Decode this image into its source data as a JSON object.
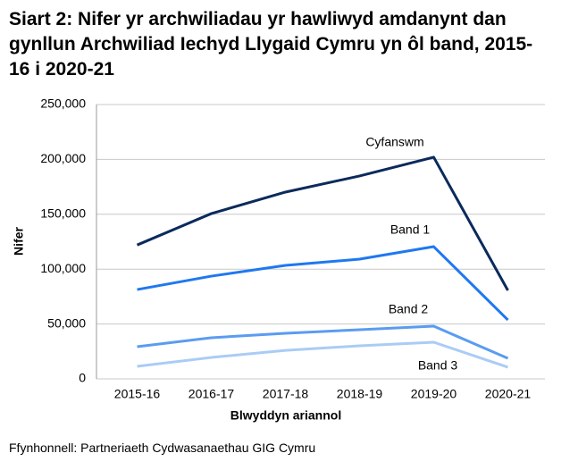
{
  "chart_data": {
    "type": "line",
    "title": "Siart 2: Nifer yr archwiliadau yr hawliwyd amdanynt dan gynllun Archwiliad Iechyd Llygaid Cymru yn ôl band, 2015-16 i 2020-21",
    "x_label": "Blwyddyn ariannol",
    "y_label": "Nifer",
    "source": "Ffynhonnell: Partneriaeth Cydwasanaethau GIG Cymru",
    "categories": [
      "2015-16",
      "2016-17",
      "2017-18",
      "2018-19",
      "2019-20",
      "2020-21"
    ],
    "series": [
      {
        "name": "Cyfanswm",
        "color": "#0b2a5c",
        "values": [
          122000,
          150600,
          170200,
          184900,
          202000,
          80600
        ]
      },
      {
        "name": "Band 1",
        "color": "#1f78f0",
        "values": [
          81400,
          93600,
          103400,
          109100,
          120500,
          53700
        ]
      },
      {
        "name": "Band 2",
        "color": "#5a9cf0",
        "values": [
          29300,
          37500,
          41500,
          44800,
          48000,
          18700
        ]
      },
      {
        "name": "Band 3",
        "color": "#aaccf5",
        "values": [
          11400,
          19500,
          26000,
          30100,
          33400,
          10600
        ]
      }
    ],
    "ylim": [
      0,
      250000
    ],
    "yticks": [
      0,
      {
        "value": 50000,
        "label": "50,000"
      },
      {
        "value": 100000,
        "label": "100,000"
      },
      {
        "value": 150000,
        "label": "150,000"
      },
      {
        "value": 200000,
        "label": "200,000"
      },
      {
        "value": 250000,
        "label": "250,000"
      }
    ],
    "grid": true
  }
}
